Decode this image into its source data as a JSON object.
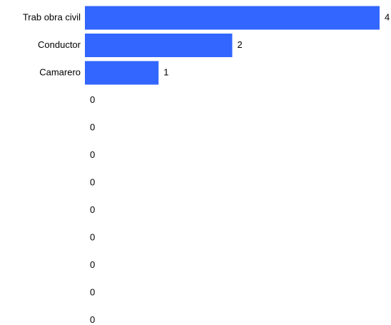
{
  "chart_data": {
    "type": "bar",
    "orientation": "horizontal",
    "categories": [
      "Trab obra civil",
      "Conductor",
      "Camarero",
      "",
      "",
      "",
      "",
      "",
      "",
      "",
      "",
      ""
    ],
    "values": [
      4,
      2,
      1,
      0,
      0,
      0,
      0,
      0,
      0,
      0,
      0,
      0
    ],
    "value_labels": [
      "4",
      "2",
      "1",
      "0",
      "0",
      "0",
      "0",
      "0",
      "0",
      "0",
      "0",
      "0"
    ],
    "xlim": [
      0,
      4
    ],
    "bar_color": "#3366ff",
    "grid": false,
    "legend": "none"
  }
}
